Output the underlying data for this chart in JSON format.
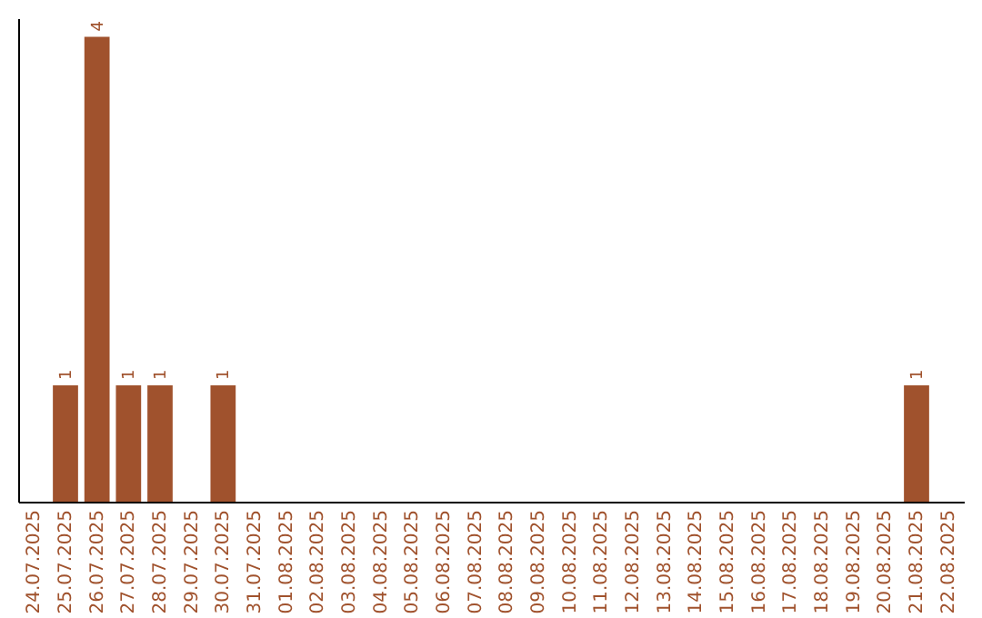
{
  "chart_data": {
    "type": "bar",
    "categories": [
      "24.07.2025",
      "25.07.2025",
      "26.07.2025",
      "27.07.2025",
      "28.07.2025",
      "29.07.2025",
      "30.07.2025",
      "31.07.2025",
      "01.08.2025",
      "02.08.2025",
      "03.08.2025",
      "04.08.2025",
      "05.08.2025",
      "06.08.2025",
      "07.08.2025",
      "08.08.2025",
      "09.08.2025",
      "10.08.2025",
      "11.08.2025",
      "12.08.2025",
      "13.08.2025",
      "14.08.2025",
      "15.08.2025",
      "16.08.2025",
      "17.08.2025",
      "18.08.2025",
      "19.08.2025",
      "20.08.2025",
      "21.08.2025",
      "22.08.2025"
    ],
    "values": [
      0,
      1,
      4,
      1,
      1,
      0,
      1,
      0,
      0,
      0,
      0,
      0,
      0,
      0,
      0,
      0,
      0,
      0,
      0,
      0,
      0,
      0,
      0,
      0,
      0,
      0,
      0,
      0,
      1,
      0
    ],
    "value_labels": [
      null,
      "1",
      "4",
      "1",
      "1",
      null,
      "1",
      null,
      null,
      null,
      null,
      null,
      null,
      null,
      null,
      null,
      null,
      null,
      null,
      null,
      null,
      null,
      null,
      null,
      null,
      null,
      null,
      null,
      "1",
      null
    ],
    "color": "#a0522d",
    "ylim": [
      0,
      4.16
    ],
    "grid": false,
    "tick_labels": "x"
  }
}
